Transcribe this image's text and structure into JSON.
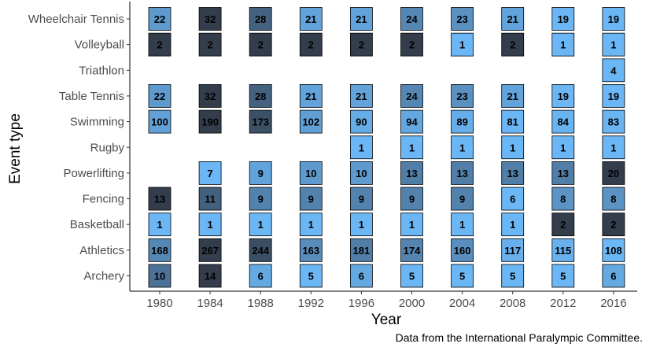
{
  "chart_data": {
    "type": "heatmap",
    "xlabel": "Year",
    "ylabel": "Event type",
    "caption": "Data from the International Paralympic Committee.",
    "x": [
      "1980",
      "1984",
      "1988",
      "1992",
      "1996",
      "2000",
      "2004",
      "2008",
      "2012",
      "2016"
    ],
    "y": [
      "Archery",
      "Athletics",
      "Basketball",
      "Fencing",
      "Powerlifting",
      "Rugby",
      "Swimming",
      "Table Tennis",
      "Triathlon",
      "Volleyball",
      "Wheelchair Tennis"
    ],
    "values": [
      [
        10,
        14,
        6,
        5,
        6,
        5,
        5,
        5,
        5,
        6
      ],
      [
        168,
        267,
        244,
        163,
        181,
        174,
        160,
        117,
        115,
        108
      ],
      [
        1,
        1,
        1,
        1,
        1,
        1,
        1,
        1,
        2,
        2
      ],
      [
        13,
        11,
        9,
        9,
        9,
        9,
        9,
        6,
        8,
        8
      ],
      [
        null,
        7,
        9,
        10,
        10,
        13,
        13,
        13,
        13,
        20
      ],
      [
        null,
        null,
        null,
        null,
        1,
        1,
        1,
        1,
        1,
        1
      ],
      [
        100,
        190,
        173,
        102,
        90,
        94,
        89,
        81,
        84,
        83
      ],
      [
        22,
        32,
        28,
        21,
        21,
        24,
        23,
        21,
        19,
        19
      ],
      [
        null,
        null,
        null,
        null,
        null,
        null,
        null,
        null,
        null,
        4
      ],
      [
        2,
        2,
        2,
        2,
        2,
        2,
        1,
        2,
        1,
        1
      ],
      [
        22,
        32,
        28,
        21,
        21,
        24,
        23,
        21,
        19,
        19
      ]
    ],
    "color_scale": {
      "low": "#6bb6f5",
      "high": "#333d4c",
      "scale": "per-event"
    },
    "grid": false,
    "legend": "none"
  }
}
